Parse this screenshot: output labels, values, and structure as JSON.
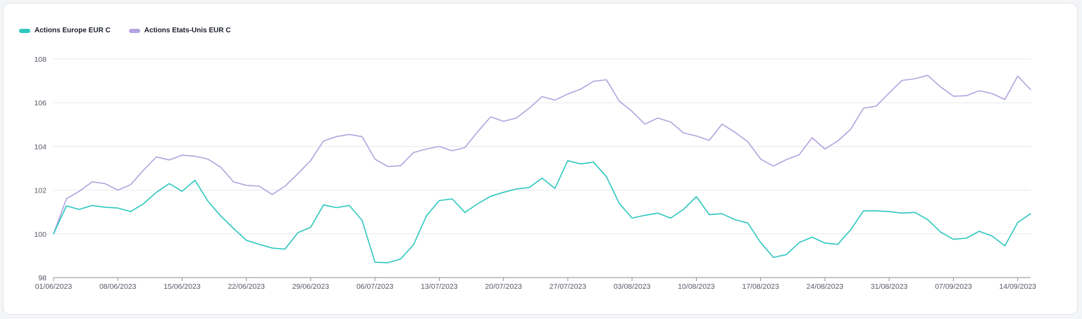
{
  "chart_data": {
    "type": "line",
    "title": "",
    "xlabel": "",
    "ylabel": "",
    "ylim": [
      98,
      108
    ],
    "yticks": [
      98,
      100,
      102,
      104,
      106,
      108
    ],
    "grid": true,
    "legend_position": "top-left",
    "x_tick_labels": [
      "01/06/2023",
      "08/06/2023",
      "15/06/2023",
      "22/06/2023",
      "29/06/2023",
      "06/07/2023",
      "13/07/2023",
      "20/07/2023",
      "27/07/2023",
      "03/08/2023",
      "10/08/2023",
      "17/08/2023",
      "24/08/2023",
      "31/08/2023",
      "07/09/2023",
      "14/09/2023"
    ],
    "x": [
      "01/06",
      "02/06",
      "05/06",
      "06/06",
      "07/06",
      "08/06",
      "09/06",
      "12/06",
      "13/06",
      "14/06",
      "15/06",
      "16/06",
      "19/06",
      "20/06",
      "21/06",
      "22/06",
      "23/06",
      "26/06",
      "27/06",
      "28/06",
      "29/06",
      "30/06",
      "03/07",
      "04/07",
      "05/07",
      "06/07",
      "07/07",
      "10/07",
      "11/07",
      "12/07",
      "13/07",
      "14/07",
      "17/07",
      "18/07",
      "19/07",
      "20/07",
      "21/07",
      "24/07",
      "25/07",
      "26/07",
      "27/07",
      "28/07",
      "31/07",
      "01/08",
      "02/08",
      "03/08",
      "04/08",
      "07/08",
      "08/08",
      "09/08",
      "10/08",
      "11/08",
      "14/08",
      "15/08",
      "16/08",
      "17/08",
      "18/08",
      "21/08",
      "22/08",
      "23/08",
      "24/08",
      "25/08",
      "28/08",
      "29/08",
      "30/08",
      "31/08",
      "01/09",
      "04/09",
      "05/09",
      "06/09",
      "07/09",
      "08/09",
      "11/09",
      "12/09",
      "13/09",
      "14/09",
      "15/09"
    ],
    "series": [
      {
        "name": "Actions Europe EUR C",
        "color": "#2ec7c0",
        "values": [
          100.0,
          101.28,
          101.12,
          101.3,
          101.22,
          101.18,
          101.02,
          101.38,
          101.9,
          102.3,
          101.95,
          102.45,
          101.5,
          100.82,
          100.25,
          99.7,
          99.52,
          99.35,
          99.3,
          100.05,
          100.3,
          101.32,
          101.2,
          101.3,
          100.62,
          98.7,
          98.68,
          98.85,
          99.5,
          100.82,
          101.52,
          101.6,
          100.98,
          101.38,
          101.72,
          101.9,
          102.05,
          102.12,
          102.55,
          102.08,
          103.35,
          103.2,
          103.28,
          102.62,
          101.4,
          100.72,
          100.85,
          100.95,
          100.72,
          101.12,
          101.7,
          100.88,
          100.92,
          100.65,
          100.5,
          99.6,
          98.92,
          99.05,
          99.6,
          99.85,
          99.58,
          99.52,
          100.18,
          101.05,
          101.05,
          101.02,
          100.95,
          100.98,
          100.65,
          100.08,
          99.75,
          99.8,
          100.12,
          99.9,
          99.45,
          100.52,
          100.92
        ]
      },
      {
        "name": "Actions Etats-Unis EUR C",
        "color": "#b4a3de",
        "values": [
          100.0,
          101.6,
          101.95,
          102.38,
          102.3,
          102.0,
          102.25,
          102.92,
          103.52,
          103.38,
          103.6,
          103.55,
          103.42,
          103.05,
          102.38,
          102.22,
          102.18,
          101.8,
          102.18,
          102.75,
          103.35,
          104.25,
          104.45,
          104.55,
          104.45,
          103.42,
          103.08,
          103.12,
          103.72,
          103.88,
          104.0,
          103.8,
          103.95,
          104.68,
          105.35,
          105.15,
          105.3,
          105.75,
          106.28,
          106.12,
          106.4,
          106.62,
          106.98,
          107.05,
          106.08,
          105.6,
          105.02,
          105.3,
          105.12,
          104.62,
          104.48,
          104.28,
          105.02,
          104.65,
          104.22,
          103.42,
          103.1,
          103.4,
          103.62,
          104.4,
          103.88,
          104.25,
          104.78,
          105.75,
          105.85,
          106.45,
          107.02,
          107.1,
          107.25,
          106.72,
          106.3,
          106.32,
          106.55,
          106.42,
          106.15,
          107.22,
          106.6
        ]
      }
    ]
  }
}
